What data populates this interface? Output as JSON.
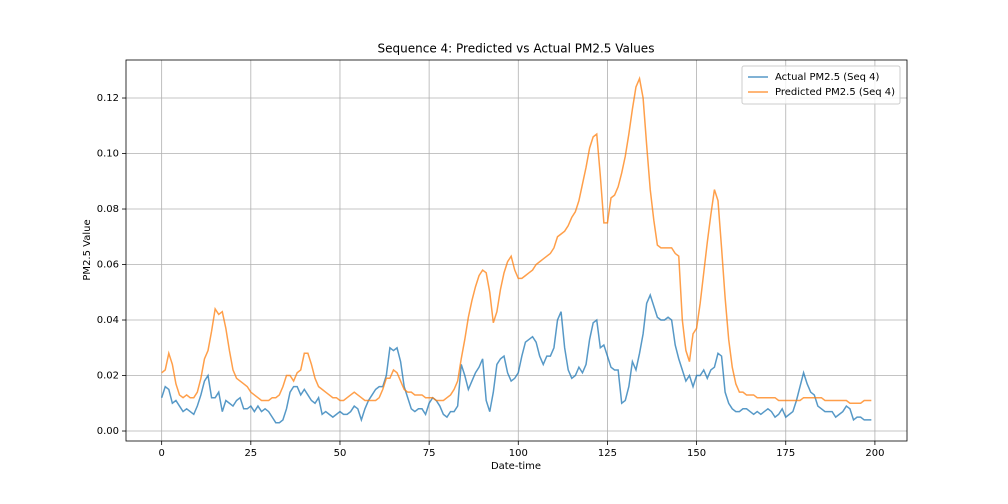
{
  "chart_data": {
    "type": "line",
    "title": "Sequence 4: Predicted vs Actual PM2.5 Values",
    "x_label": "Date-time",
    "y_label": "PM2.5 Value",
    "xlim": [
      -10,
      209
    ],
    "ylim": [
      -0.0036,
      0.1337
    ],
    "xticks": [
      0,
      25,
      50,
      75,
      100,
      125,
      150,
      175,
      200
    ],
    "yticks": [
      {
        "value": 0,
        "label": "0.00"
      },
      {
        "value": 0.02,
        "label": "0.02"
      },
      {
        "value": 0.04,
        "label": "0.04"
      },
      {
        "value": 0.06,
        "label": "0.06"
      },
      {
        "value": 0.08,
        "label": "0.08"
      },
      {
        "value": 0.1,
        "label": "0.10"
      },
      {
        "value": 0.12,
        "label": "0.12"
      }
    ],
    "grid": true,
    "legend": "upper right",
    "x": [
      0,
      1,
      2,
      3,
      4,
      5,
      6,
      7,
      8,
      9,
      10,
      11,
      12,
      13,
      14,
      15,
      16,
      17,
      18,
      19,
      20,
      21,
      22,
      23,
      24,
      25,
      26,
      27,
      28,
      29,
      30,
      31,
      32,
      33,
      34,
      35,
      36,
      37,
      38,
      39,
      40,
      41,
      42,
      43,
      44,
      45,
      46,
      47,
      48,
      49,
      50,
      51,
      52,
      53,
      54,
      55,
      56,
      57,
      58,
      59,
      60,
      61,
      62,
      63,
      64,
      65,
      66,
      67,
      68,
      69,
      70,
      71,
      72,
      73,
      74,
      75,
      76,
      77,
      78,
      79,
      80,
      81,
      82,
      83,
      84,
      85,
      86,
      87,
      88,
      89,
      90,
      91,
      92,
      93,
      94,
      95,
      96,
      97,
      98,
      99,
      100,
      101,
      102,
      103,
      104,
      105,
      106,
      107,
      108,
      109,
      110,
      111,
      112,
      113,
      114,
      115,
      116,
      117,
      118,
      119,
      120,
      121,
      122,
      123,
      124,
      125,
      126,
      127,
      128,
      129,
      130,
      131,
      132,
      133,
      134,
      135,
      136,
      137,
      138,
      139,
      140,
      141,
      142,
      143,
      144,
      145,
      146,
      147,
      148,
      149,
      150,
      151,
      152,
      153,
      154,
      155,
      156,
      157,
      158,
      159,
      160,
      161,
      162,
      163,
      164,
      165,
      166,
      167,
      168,
      169,
      170,
      171,
      172,
      173,
      174,
      175,
      176,
      177,
      178,
      179,
      180,
      181,
      182,
      183,
      184,
      185,
      186,
      187,
      188,
      189,
      190,
      191,
      192,
      193,
      194,
      195,
      196,
      197,
      198,
      199
    ],
    "series": [
      {
        "name": "Actual PM2.5 (Seq 4)",
        "color": "#1f77b4",
        "values": [
          0.012,
          0.016,
          0.015,
          0.01,
          0.011,
          0.009,
          0.007,
          0.008,
          0.007,
          0.006,
          0.009,
          0.013,
          0.018,
          0.02,
          0.012,
          0.012,
          0.014,
          0.007,
          0.011,
          0.01,
          0.009,
          0.011,
          0.012,
          0.008,
          0.008,
          0.009,
          0.007,
          0.009,
          0.007,
          0.008,
          0.007,
          0.005,
          0.003,
          0.003,
          0.004,
          0.008,
          0.014,
          0.016,
          0.016,
          0.013,
          0.015,
          0.013,
          0.011,
          0.01,
          0.012,
          0.006,
          0.007,
          0.006,
          0.005,
          0.006,
          0.007,
          0.006,
          0.006,
          0.007,
          0.009,
          0.008,
          0.004,
          0.008,
          0.011,
          0.013,
          0.015,
          0.016,
          0.016,
          0.02,
          0.03,
          0.029,
          0.03,
          0.025,
          0.016,
          0.012,
          0.008,
          0.007,
          0.008,
          0.008,
          0.006,
          0.01,
          0.012,
          0.011,
          0.009,
          0.006,
          0.005,
          0.007,
          0.007,
          0.009,
          0.024,
          0.02,
          0.015,
          0.018,
          0.021,
          0.023,
          0.026,
          0.011,
          0.007,
          0.014,
          0.024,
          0.026,
          0.027,
          0.021,
          0.018,
          0.019,
          0.021,
          0.027,
          0.032,
          0.033,
          0.034,
          0.032,
          0.027,
          0.024,
          0.027,
          0.027,
          0.03,
          0.04,
          0.043,
          0.03,
          0.022,
          0.019,
          0.02,
          0.023,
          0.021,
          0.024,
          0.033,
          0.039,
          0.04,
          0.03,
          0.031,
          0.027,
          0.023,
          0.022,
          0.022,
          0.01,
          0.011,
          0.016,
          0.025,
          0.022,
          0.028,
          0.035,
          0.046,
          0.049,
          0.045,
          0.041,
          0.04,
          0.04,
          0.041,
          0.04,
          0.031,
          0.026,
          0.022,
          0.018,
          0.02,
          0.016,
          0.02,
          0.02,
          0.022,
          0.019,
          0.022,
          0.023,
          0.028,
          0.027,
          0.014,
          0.01,
          0.008,
          0.007,
          0.007,
          0.008,
          0.008,
          0.007,
          0.006,
          0.007,
          0.006,
          0.007,
          0.008,
          0.007,
          0.005,
          0.006,
          0.008,
          0.005,
          0.006,
          0.007,
          0.011,
          0.016,
          0.021,
          0.017,
          0.014,
          0.013,
          0.009,
          0.008,
          0.007,
          0.007,
          0.007,
          0.005,
          0.006,
          0.007,
          0.009,
          0.008,
          0.004,
          0.005,
          0.005,
          0.004,
          0.004,
          0.004
        ]
      },
      {
        "name": "Predicted PM2.5 (Seq 4)",
        "color": "#ff7f0e",
        "values": [
          0.021,
          0.022,
          0.028,
          0.024,
          0.017,
          0.013,
          0.012,
          0.013,
          0.012,
          0.012,
          0.014,
          0.019,
          0.026,
          0.029,
          0.036,
          0.044,
          0.042,
          0.043,
          0.037,
          0.029,
          0.022,
          0.019,
          0.018,
          0.017,
          0.016,
          0.014,
          0.013,
          0.012,
          0.011,
          0.011,
          0.011,
          0.012,
          0.012,
          0.013,
          0.016,
          0.02,
          0.02,
          0.018,
          0.021,
          0.022,
          0.028,
          0.028,
          0.024,
          0.019,
          0.016,
          0.015,
          0.014,
          0.013,
          0.012,
          0.012,
          0.011,
          0.011,
          0.012,
          0.013,
          0.014,
          0.013,
          0.012,
          0.011,
          0.011,
          0.011,
          0.011,
          0.012,
          0.015,
          0.019,
          0.019,
          0.022,
          0.021,
          0.018,
          0.015,
          0.014,
          0.014,
          0.013,
          0.013,
          0.013,
          0.012,
          0.012,
          0.012,
          0.011,
          0.011,
          0.011,
          0.012,
          0.013,
          0.015,
          0.018,
          0.026,
          0.033,
          0.041,
          0.047,
          0.052,
          0.056,
          0.058,
          0.057,
          0.05,
          0.039,
          0.043,
          0.051,
          0.057,
          0.061,
          0.063,
          0.058,
          0.055,
          0.055,
          0.056,
          0.057,
          0.058,
          0.06,
          0.061,
          0.062,
          0.063,
          0.064,
          0.066,
          0.07,
          0.071,
          0.072,
          0.074,
          0.077,
          0.079,
          0.083,
          0.089,
          0.095,
          0.102,
          0.106,
          0.107,
          0.092,
          0.075,
          0.075,
          0.084,
          0.085,
          0.088,
          0.093,
          0.099,
          0.107,
          0.116,
          0.124,
          0.127,
          0.12,
          0.103,
          0.087,
          0.076,
          0.067,
          0.066,
          0.066,
          0.066,
          0.066,
          0.064,
          0.063,
          0.04,
          0.029,
          0.025,
          0.035,
          0.037,
          0.046,
          0.057,
          0.068,
          0.078,
          0.087,
          0.083,
          0.066,
          0.048,
          0.033,
          0.023,
          0.017,
          0.014,
          0.014,
          0.013,
          0.013,
          0.013,
          0.012,
          0.012,
          0.012,
          0.012,
          0.012,
          0.012,
          0.011,
          0.011,
          0.011,
          0.011,
          0.011,
          0.011,
          0.011,
          0.012,
          0.012,
          0.012,
          0.012,
          0.012,
          0.012,
          0.011,
          0.011,
          0.011,
          0.011,
          0.011,
          0.011,
          0.011,
          0.01,
          0.01,
          0.01,
          0.01,
          0.011,
          0.011,
          0.011
        ]
      }
    ]
  }
}
